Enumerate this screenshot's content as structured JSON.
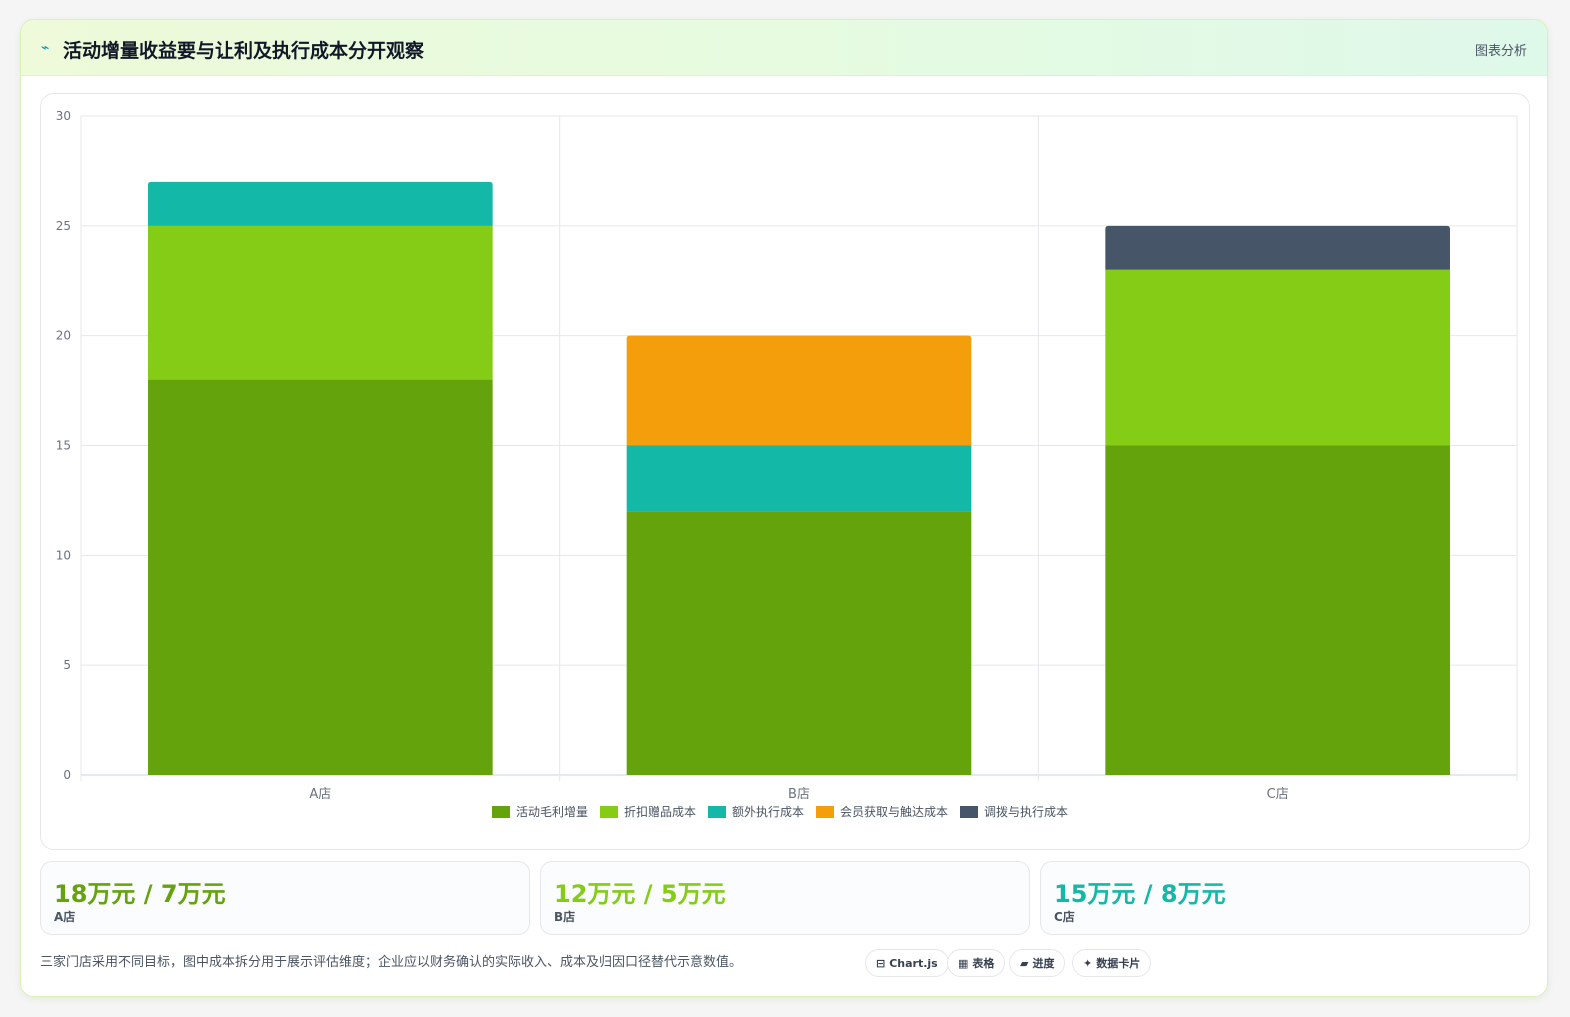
{
  "header": {
    "icon": "trend-line-icon",
    "title": "活动增量收益要与让利及执行成本分开观察",
    "tag": "图表分析"
  },
  "chart_data": {
    "type": "bar",
    "stacked": true,
    "categories": [
      "A店",
      "B店",
      "C店"
    ],
    "ylim": [
      0,
      30
    ],
    "yticks": [
      0,
      5,
      10,
      15,
      20,
      25,
      30
    ],
    "grid": true,
    "legend_position": "bottom",
    "series": [
      {
        "name": "活动毛利增量",
        "color": "#65a30d",
        "values": [
          18,
          12,
          15
        ]
      },
      {
        "name": "折扣赠品成本",
        "color": "#84cc16",
        "values": [
          7,
          0,
          8
        ]
      },
      {
        "name": "额外执行成本",
        "color": "#14b8a6",
        "values": [
          2,
          3,
          0
        ]
      },
      {
        "name": "会员获取与触达成本",
        "color": "#f59e0b",
        "values": [
          0,
          5,
          0
        ]
      },
      {
        "name": "调拨与执行成本",
        "color": "#475569",
        "values": [
          0,
          0,
          2
        ]
      }
    ]
  },
  "kpis": [
    {
      "value": "18万元 / 7万元",
      "label": "A店",
      "color": "#65a30d"
    },
    {
      "value": "12万元 / 5万元",
      "label": "B店",
      "color": "#84cc16"
    },
    {
      "value": "15万元 / 8万元",
      "label": "C店",
      "color": "#14b8a6"
    }
  ],
  "footnote": "三家门店采用不同目标，图中成本拆分用于展示评估维度；企业应以财务确认的实际收入、成本及归因口径替代示意数值。",
  "chips": [
    {
      "icon": "⊟",
      "icon_name": "chart-icon",
      "label": "Chart.js"
    },
    {
      "icon": "▦",
      "icon_name": "table-icon",
      "label": "表格"
    },
    {
      "icon": "▰",
      "icon_name": "progress-icon",
      "label": "进度"
    },
    {
      "icon": "✦",
      "icon_name": "sparkle-icon",
      "label": "数据卡片"
    }
  ]
}
